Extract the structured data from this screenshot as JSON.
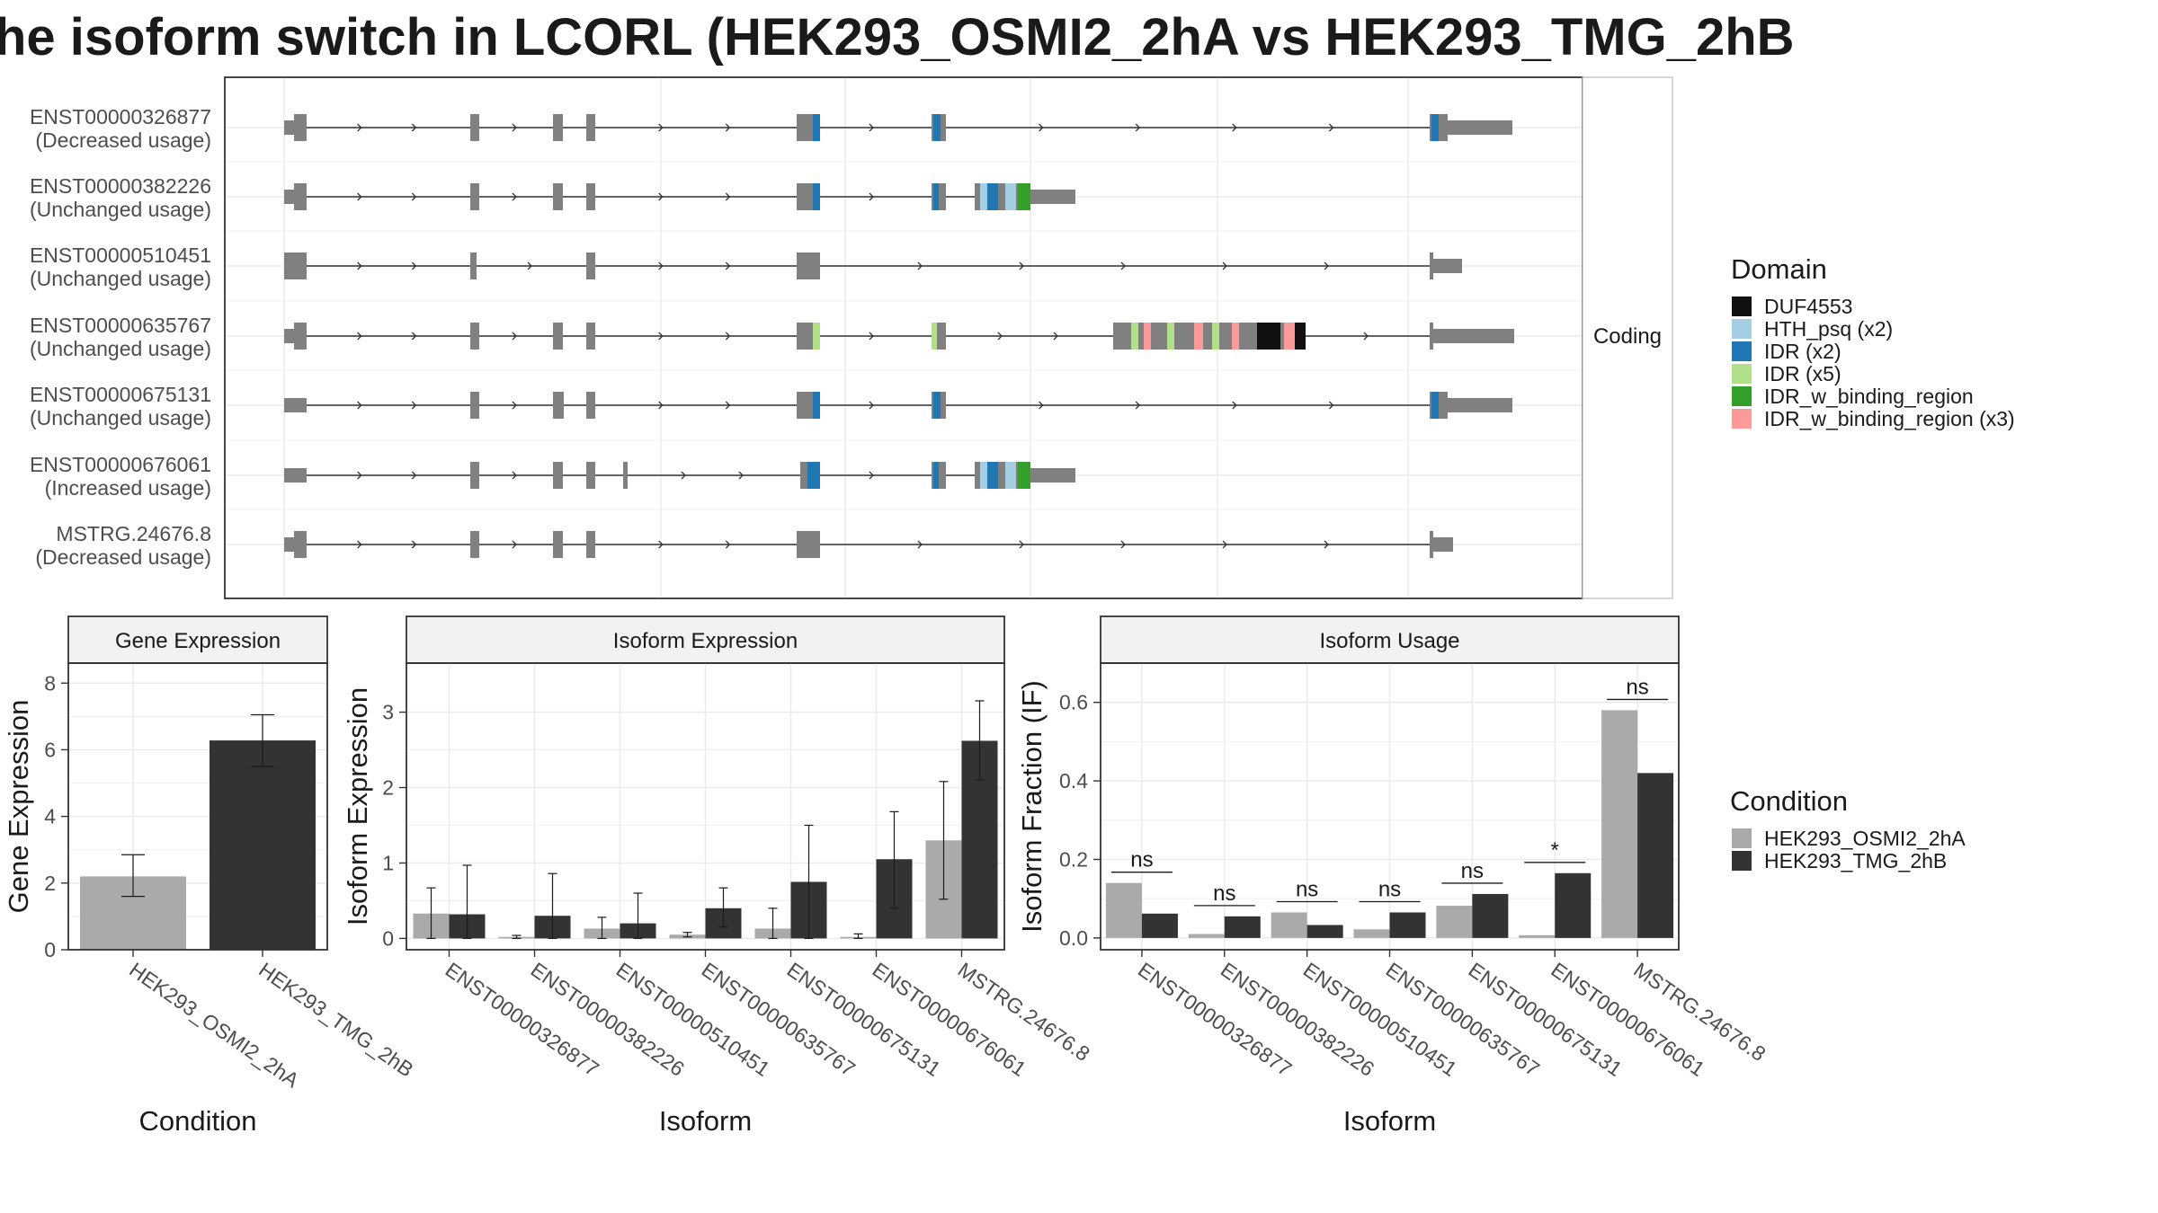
{
  "title": "he isoform switch in LCORL (HEK293_OSMI2_2hA vs HEK293_TMG_2hB",
  "chart_data": [
    {
      "type": "diagram",
      "panel": "Coding",
      "transcripts": [
        {
          "id": "ENST00000326877",
          "usage": "(Decreased usage)"
        },
        {
          "id": "ENST00000382226",
          "usage": "(Unchanged usage)"
        },
        {
          "id": "ENST00000510451",
          "usage": "(Unchanged usage)"
        },
        {
          "id": "ENST00000635767",
          "usage": "(Unchanged usage)"
        },
        {
          "id": "ENST00000675131",
          "usage": "(Unchanged usage)"
        },
        {
          "id": "ENST00000676061",
          "usage": "(Increased usage)"
        },
        {
          "id": "MSTRG.24676.8",
          "usage": "(Decreased usage)"
        }
      ],
      "legend": {
        "title": "Domain",
        "entries": [
          {
            "label": "DUF4553",
            "color": "#111111"
          },
          {
            "label": "HTH_psq (x2)",
            "color": "#a6cee3"
          },
          {
            "label": "IDR (x2)",
            "color": "#1f78b4"
          },
          {
            "label": "IDR (x5)",
            "color": "#b2df8a"
          },
          {
            "label": "IDR_w_binding_region",
            "color": "#33a02c"
          },
          {
            "label": "IDR_w_binding_region (x3)",
            "color": "#fb9a99"
          }
        ]
      }
    },
    {
      "type": "bar",
      "title": "Gene Expression",
      "xlabel": "Condition",
      "ylabel": "Gene Expression",
      "ylim": [
        0,
        8.6
      ],
      "yticks": [
        0,
        2,
        4,
        6,
        8
      ],
      "categories": [
        "HEK293_OSMI2_2hA",
        "HEK293_TMG_2hB"
      ],
      "values": [
        2.2,
        6.28
      ],
      "errors": [
        [
          1.6,
          2.85
        ],
        [
          5.5,
          7.05
        ]
      ]
    },
    {
      "type": "bar",
      "title": "Isoform Expression",
      "xlabel": "Isoform",
      "ylabel": "Isoform Expression",
      "ylim": [
        -0.15,
        3.65
      ],
      "yticks": [
        0,
        1,
        2,
        3
      ],
      "categories": [
        "ENST00000326877",
        "ENST00000382226",
        "ENST00000510451",
        "ENST00000635767",
        "ENST00000675131",
        "ENST00000676061",
        "MSTRG.24676.8"
      ],
      "series": [
        {
          "name": "HEK293_OSMI2_2hA",
          "values": [
            0.33,
            0.02,
            0.13,
            0.05,
            0.13,
            0.02,
            1.3
          ],
          "errors": [
            [
              0.0,
              0.67
            ],
            [
              0.0,
              0.04
            ],
            [
              0.0,
              0.28
            ],
            [
              0.02,
              0.08
            ],
            [
              0.0,
              0.4
            ],
            [
              0.0,
              0.06
            ],
            [
              0.52,
              2.08
            ]
          ]
        },
        {
          "name": "HEK293_TMG_2hB",
          "values": [
            0.32,
            0.3,
            0.2,
            0.4,
            0.75,
            1.05,
            2.62
          ],
          "errors": [
            [
              0.0,
              0.97
            ],
            [
              0.0,
              0.86
            ],
            [
              0.0,
              0.6
            ],
            [
              0.15,
              0.67
            ],
            [
              0.0,
              1.5
            ],
            [
              0.4,
              1.68
            ],
            [
              2.1,
              3.15
            ]
          ]
        }
      ]
    },
    {
      "type": "bar",
      "title": "Isoform Usage",
      "xlabel": "Isoform",
      "ylabel": "Isoform Fraction (IF)",
      "ylim": [
        -0.03,
        0.7
      ],
      "yticks": [
        0.0,
        0.2,
        0.4,
        0.6
      ],
      "categories": [
        "ENST00000326877",
        "ENST00000382226",
        "ENST00000510451",
        "ENST00000635767",
        "ENST00000675131",
        "ENST00000676061",
        "MSTRG.24676.8"
      ],
      "series": [
        {
          "name": "HEK293_OSMI2_2hA",
          "values": [
            0.14,
            0.01,
            0.065,
            0.022,
            0.082,
            0.007,
            0.58
          ]
        },
        {
          "name": "HEK293_TMG_2hB",
          "values": [
            0.062,
            0.055,
            0.033,
            0.065,
            0.112,
            0.165,
            0.42
          ]
        }
      ],
      "significance": [
        "ns",
        "ns",
        "ns",
        "ns",
        "ns",
        "*",
        "ns"
      ]
    }
  ],
  "condition_legend": {
    "title": "Condition",
    "entries": [
      {
        "label": "HEK293_OSMI2_2hA",
        "color": "#aaaaaa"
      },
      {
        "label": "HEK293_TMG_2hB",
        "color": "#333333"
      }
    ]
  }
}
